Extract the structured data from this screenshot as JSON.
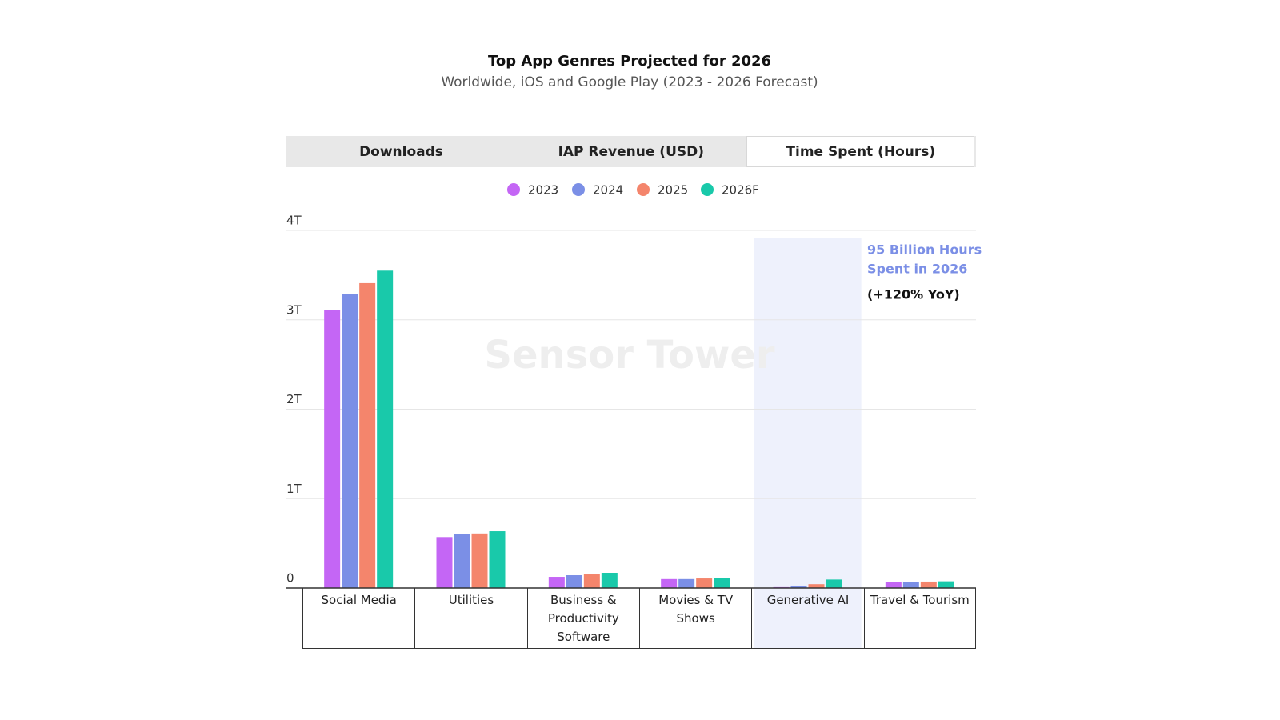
{
  "tabs": [
    {
      "label": "Downloads",
      "active": false
    },
    {
      "label": "IAP Revenue (USD)",
      "active": false
    },
    {
      "label": "Time Spent (Hours)",
      "active": true
    }
  ],
  "chart_data": {
    "type": "bar",
    "title": "Top App Genres Projected for 2026",
    "subtitle": "Worldwide, iOS and Google Play (2023 - 2026 Forecast)",
    "watermark": "Sensor Tower",
    "categories": [
      "Social Media",
      "Utilities",
      "Business & Productivity Software",
      "Movies & TV Shows",
      "Generative AI",
      "Travel & Tourism"
    ],
    "series": [
      {
        "name": "2023",
        "color": "#c466f5",
        "values": [
          3110000000000,
          570000000000,
          125000000000,
          100000000000,
          10000000000,
          65000000000
        ]
      },
      {
        "name": "2024",
        "color": "#7b8fe6",
        "values": [
          3290000000000,
          600000000000,
          143000000000,
          100000000000,
          20000000000,
          70000000000
        ]
      },
      {
        "name": "2025",
        "color": "#f4856c",
        "values": [
          3410000000000,
          610000000000,
          152000000000,
          107000000000,
          43000000000,
          72000000000
        ]
      },
      {
        "name": "2026F",
        "color": "#19c9aa",
        "values": [
          3550000000000,
          635000000000,
          170000000000,
          116000000000,
          95000000000,
          75000000000
        ]
      }
    ],
    "ylim": [
      0,
      4000000000000
    ],
    "yticks": [
      0,
      {
        "value": 1000000000000,
        "label": "1T"
      },
      {
        "value": 2000000000000,
        "label": "2T"
      },
      {
        "value": 3000000000000,
        "label": "3T"
      },
      {
        "value": 4000000000000,
        "label": "4T"
      }
    ],
    "grid": true,
    "highlight_index": 4,
    "annotation": {
      "lines": [
        "95 Billion Hours",
        "Spent in 2026"
      ],
      "color": "#7b8fe6",
      "note": "(+120% YoY)"
    }
  }
}
